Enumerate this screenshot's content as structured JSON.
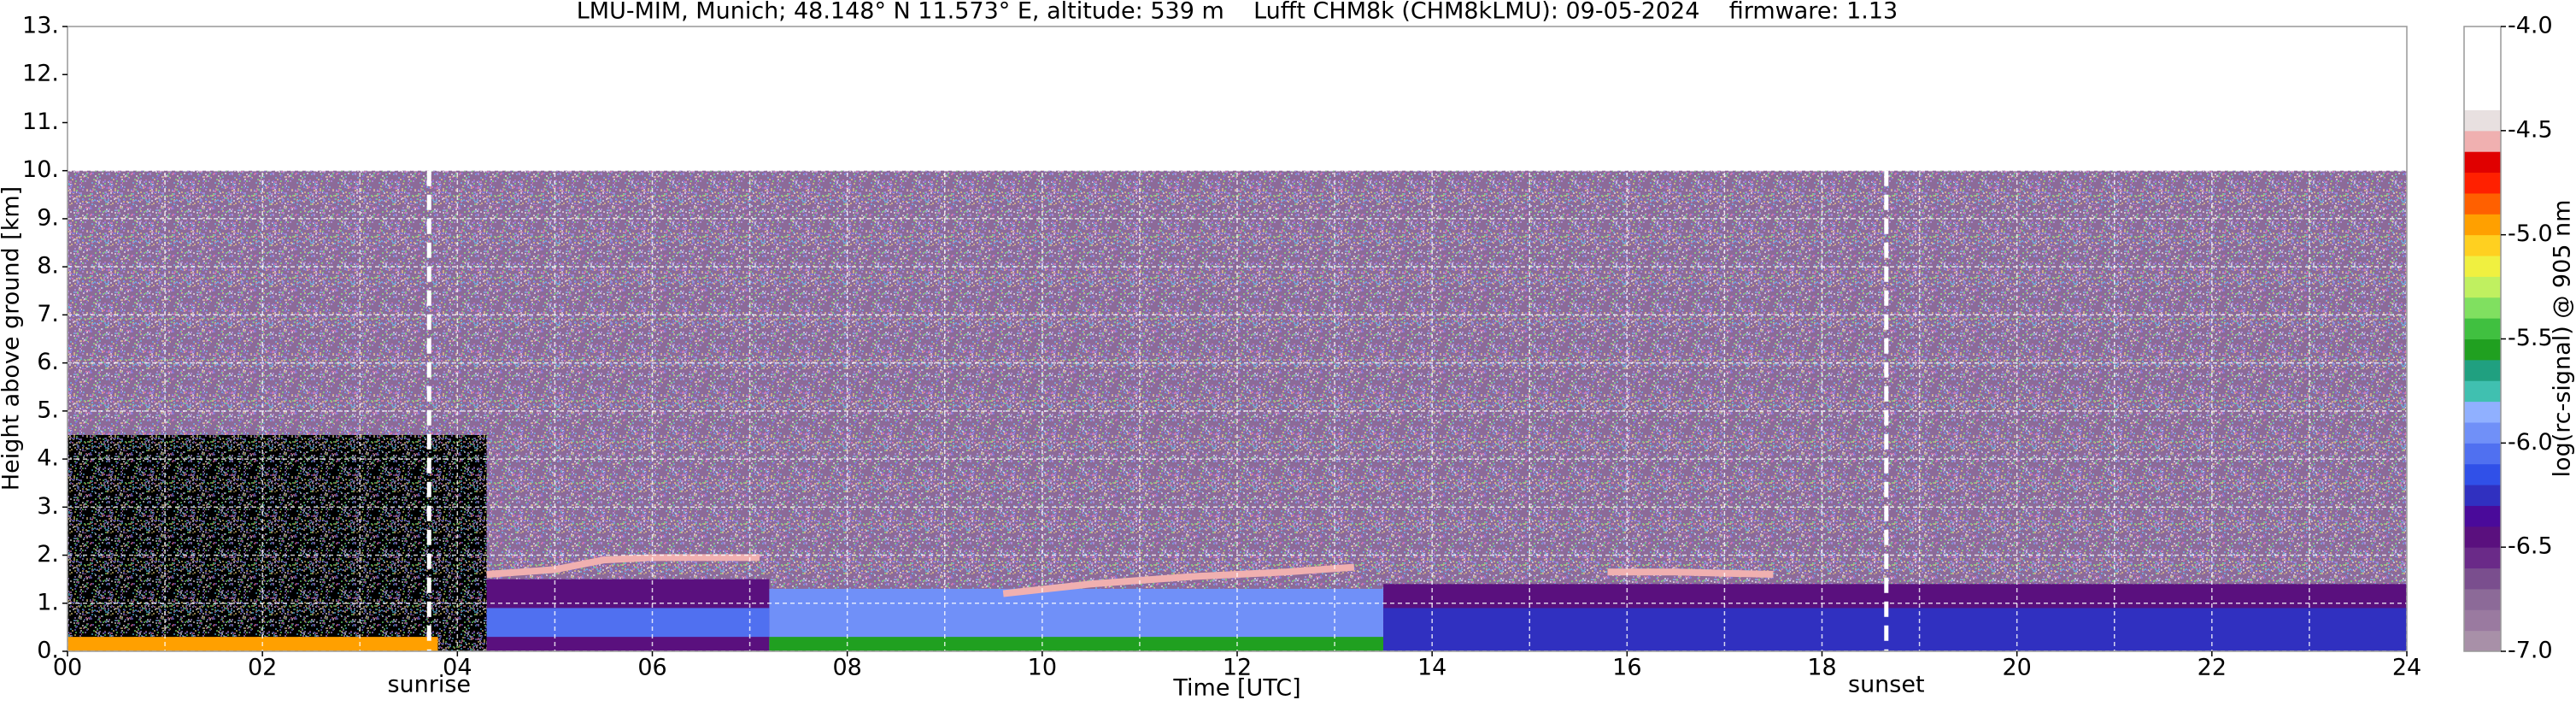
{
  "chart_data": {
    "type": "heatmap",
    "title": "LMU-MIM, Munich; 48.148° N 11.573° E, altitude: 539 m    Lufft CHM8k (CHM8kLMU): 09-05-2024    firmware: 1.13",
    "xlabel": "Time [UTC]",
    "ylabel": "Height above ground [km]",
    "xlim": [
      0,
      24
    ],
    "ylim": [
      0,
      13
    ],
    "xticks": [
      {
        "value": 0,
        "label": "00"
      },
      {
        "value": 2,
        "label": "02"
      },
      {
        "value": 4,
        "label": "04"
      },
      {
        "value": 6,
        "label": "06"
      },
      {
        "value": 8,
        "label": "08"
      },
      {
        "value": 10,
        "label": "10"
      },
      {
        "value": 12,
        "label": "12"
      },
      {
        "value": 14,
        "label": "14"
      },
      {
        "value": 16,
        "label": "16"
      },
      {
        "value": 18,
        "label": "18"
      },
      {
        "value": 20,
        "label": "20"
      },
      {
        "value": 22,
        "label": "22"
      },
      {
        "value": 24,
        "label": "24"
      }
    ],
    "x_minor_ticks": [
      1,
      3,
      5,
      7,
      9,
      11,
      13,
      15,
      17,
      19,
      21,
      23
    ],
    "yticks": [
      {
        "value": 0,
        "label": "0."
      },
      {
        "value": 1,
        "label": "1."
      },
      {
        "value": 2,
        "label": "2."
      },
      {
        "value": 3,
        "label": "3."
      },
      {
        "value": 4,
        "label": "4."
      },
      {
        "value": 5,
        "label": "5."
      },
      {
        "value": 6,
        "label": "6."
      },
      {
        "value": 7,
        "label": "7."
      },
      {
        "value": 8,
        "label": "8."
      },
      {
        "value": 9,
        "label": "9."
      },
      {
        "value": 10,
        "label": "10."
      },
      {
        "value": 11,
        "label": "11."
      },
      {
        "value": 12,
        "label": "12."
      },
      {
        "value": 13,
        "label": "13."
      }
    ],
    "grid": true,
    "annotations": [
      {
        "text": "sunrise",
        "x": 3.71
      },
      {
        "text": "sunset",
        "x": 18.66
      }
    ],
    "regions": [
      {
        "x0": 0,
        "x1": 24,
        "y0": 0,
        "y1": 10,
        "value": -6.7
      },
      {
        "x0": 0,
        "x1": 4.3,
        "y0": 0,
        "y1": 4.5,
        "value": -7.3
      },
      {
        "x0": 4.3,
        "x1": 7.2,
        "y0": 0,
        "y1": 1.5,
        "value": -6.4
      },
      {
        "x0": 4.3,
        "x1": 7.2,
        "y0": 0.3,
        "y1": 0.9,
        "value": -6.1
      },
      {
        "x0": 7.2,
        "x1": 13.5,
        "y0": 0,
        "y1": 1.3,
        "value": -6.0
      },
      {
        "x0": 7.2,
        "x1": 13.5,
        "y0": 0,
        "y1": 0.3,
        "value": -5.6
      },
      {
        "x0": 13.5,
        "x1": 24,
        "y0": 0,
        "y1": 1.4,
        "value": -6.5
      },
      {
        "x0": 13.5,
        "x1": 24,
        "y0": 0,
        "y1": 0.9,
        "value": -6.3
      },
      {
        "x0": 0,
        "x1": 3.8,
        "y0": 0,
        "y1": 0.3,
        "value": -5.0
      }
    ],
    "layers": [
      {
        "x": [
          4.3,
          5.0,
          5.5,
          6.0,
          7.1
        ],
        "y": [
          1.6,
          1.7,
          1.9,
          1.95,
          1.95
        ],
        "value": -4.6
      },
      {
        "x": [
          9.6,
          10.5,
          11.5,
          12.5,
          13.2
        ],
        "y": [
          1.2,
          1.4,
          1.55,
          1.65,
          1.75
        ],
        "value": -4.6
      },
      {
        "x": [
          15.8,
          16.5,
          17.5
        ],
        "y": [
          1.65,
          1.65,
          1.6
        ],
        "value": -4.6
      }
    ],
    "colorbar": {
      "label": "log(rc-signal) @ 905 nm",
      "lim": [
        -7,
        -4
      ],
      "under_color": "#000000",
      "colors": [
        "#a890a8",
        "#9a7aa0",
        "#8c6a98",
        "#7a4e8e",
        "#6a2a88",
        "#5a107e",
        "#4a0a9a",
        "#3030c0",
        "#3050e8",
        "#5070f0",
        "#7090f8",
        "#90b0ff",
        "#40c0b0",
        "#20a080",
        "#20a020",
        "#40c040",
        "#80e060",
        "#c0f060",
        "#f0f040",
        "#ffd020",
        "#ffa000",
        "#ff6000",
        "#ff2000",
        "#e00000",
        "#f0b0b0",
        "#e8e0e0",
        "#ffffff",
        "#ffffff",
        "#ffffff",
        "#ffffff"
      ],
      "ticks": [
        {
          "value": -4,
          "label": "-4.0"
        },
        {
          "value": -4.5,
          "label": "-4.5"
        },
        {
          "value": -5,
          "label": "-5.0"
        },
        {
          "value": -5.5,
          "label": "-5.5"
        },
        {
          "value": -6,
          "label": "-6.0"
        },
        {
          "value": -6.5,
          "label": "-6.5"
        },
        {
          "value": -7,
          "label": "-7.0"
        }
      ]
    }
  }
}
